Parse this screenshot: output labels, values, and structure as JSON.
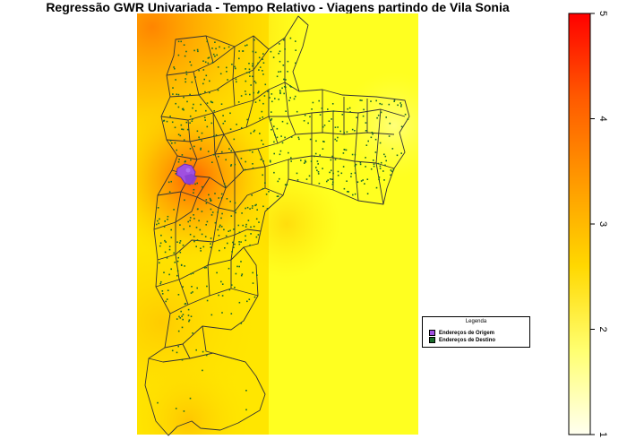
{
  "title": "Regressão GWR Univariada - Tempo Relativo - Viagens partindo de Vila Sonia",
  "legend": {
    "title": "Legenda",
    "items": [
      {
        "label": "Endereços de Origem",
        "color": "#a050e0"
      },
      {
        "label": "Endereços de Destino",
        "color": "#1a6b2a"
      }
    ]
  },
  "colorbar": {
    "min": 1,
    "max": 5,
    "ticks": [
      "1",
      "2",
      "3",
      "4",
      "5"
    ],
    "colors": [
      "#fffff0",
      "#ffff70",
      "#ffd800",
      "#ff9a00",
      "#ff5a00",
      "#ff0000"
    ]
  },
  "colors": {
    "surface_low": "#ffff20",
    "surface_high": "#ff7a00",
    "boundary": "#333333",
    "origin_points": "#8a3fd1",
    "destination_points": "#1a6b2a"
  }
}
